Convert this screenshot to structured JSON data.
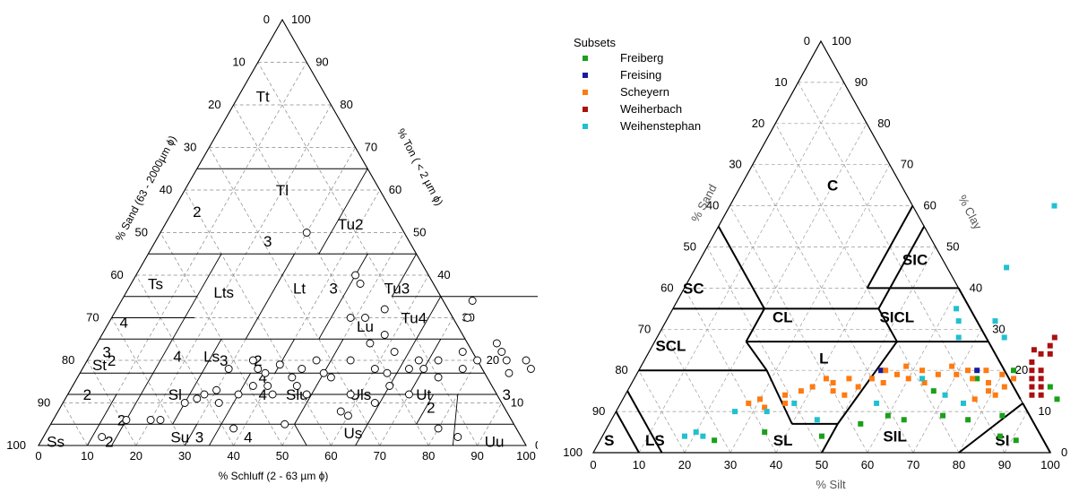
{
  "chart_data": [
    {
      "type": "scatter",
      "subtype": "ternary",
      "title": "",
      "axes": {
        "bottom": {
          "label": "% Schluff (2 - 63 µm ϕ)",
          "ticks": [
            "0",
            "10",
            "20",
            "30",
            "40",
            "50",
            "60",
            "70",
            "80",
            "90",
            "100"
          ]
        },
        "left": {
          "label": "% Sand (63 - 2000µm ϕ)",
          "ticks": [
            "0",
            "10",
            "20",
            "30",
            "40",
            "50",
            "60",
            "70",
            "80",
            "90",
            "100"
          ]
        },
        "right": {
          "label": "% Ton ( < 2 µm ϕ)",
          "ticks": [
            "0",
            "10",
            "20",
            "30",
            "40",
            "50",
            "60",
            "70",
            "80",
            "90",
            "100"
          ]
        }
      },
      "grid": true,
      "classes": [
        "Tt",
        "Tl",
        "Tu2",
        "2",
        "3",
        "Ts",
        "Lts",
        "Lt",
        "3",
        "Tu3",
        "4",
        "2",
        "Lu",
        "Tu4",
        "3",
        "4",
        "Ls",
        "3",
        "2",
        "4",
        "St",
        "2",
        "Sl",
        "4",
        "Slu",
        "Uls",
        "Ut",
        "2",
        "3",
        "2",
        "Su",
        "3",
        "4",
        "Us",
        "Ss",
        "2",
        "Uu"
      ],
      "marker": "open-circle",
      "points": [
        [
          15,
          6
        ],
        [
          12,
          2
        ],
        [
          20,
          6
        ],
        [
          22,
          6
        ],
        [
          25,
          10
        ],
        [
          27,
          11
        ],
        [
          28,
          12
        ],
        [
          30,
          13
        ],
        [
          32,
          10
        ],
        [
          35,
          12
        ],
        [
          37,
          14
        ],
        [
          38,
          17
        ],
        [
          40,
          19
        ],
        [
          42,
          12
        ],
        [
          44,
          16
        ],
        [
          45,
          18
        ],
        [
          47,
          20
        ],
        [
          49,
          12
        ],
        [
          50,
          17
        ],
        [
          52,
          16
        ],
        [
          54,
          20
        ],
        [
          56,
          24
        ],
        [
          58,
          26
        ],
        [
          52,
          30
        ],
        [
          55,
          32
        ],
        [
          60,
          18
        ],
        [
          62,
          22
        ],
        [
          63,
          17
        ],
        [
          65,
          14
        ],
        [
          67,
          18
        ],
        [
          68,
          20
        ],
        [
          70,
          18
        ],
        [
          72,
          20
        ],
        [
          74,
          16
        ],
        [
          76,
          22
        ],
        [
          78,
          18
        ],
        [
          80,
          20
        ],
        [
          82,
          24
        ],
        [
          84,
          22
        ],
        [
          86,
          20
        ],
        [
          88,
          17
        ],
        [
          90,
          20
        ],
        [
          92,
          18
        ],
        [
          94,
          24
        ],
        [
          45,
          40
        ],
        [
          47,
          38
        ],
        [
          30,
          50
        ],
        [
          49,
          30
        ],
        [
          60,
          7
        ],
        [
          38,
          4
        ],
        [
          48,
          5
        ],
        [
          58,
          8
        ],
        [
          72,
          34
        ],
        [
          73,
          30
        ],
        [
          80,
          4
        ],
        [
          85,
          2
        ],
        [
          30,
          18
        ],
        [
          34,
          20
        ],
        [
          36,
          18
        ],
        [
          40,
          14
        ],
        [
          46,
          14
        ],
        [
          58,
          12
        ],
        [
          64,
          10
        ],
        [
          70,
          12
        ]
      ]
    },
    {
      "type": "scatter",
      "subtype": "ternary",
      "title": "",
      "axes": {
        "bottom": {
          "label": "% Silt",
          "ticks": [
            "0",
            "10",
            "20",
            "30",
            "40",
            "50",
            "60",
            "70",
            "80",
            "90",
            "100"
          ]
        },
        "left": {
          "label": "% Sand",
          "ticks": [
            "0",
            "10",
            "20",
            "30",
            "40",
            "50",
            "60",
            "70",
            "80",
            "90",
            "100"
          ]
        },
        "right": {
          "label": "% Clay",
          "ticks": [
            "0",
            "10",
            "20",
            "30",
            "40",
            "50",
            "60",
            "70",
            "80",
            "90",
            "100"
          ]
        }
      },
      "grid": true,
      "legend": {
        "title": "Subsets",
        "placement": "top-left"
      },
      "classes": [
        "C",
        "SIC",
        "SC",
        "CL",
        "SICL",
        "SCL",
        "L",
        "S",
        "LS",
        "SL",
        "SIL",
        "SI"
      ],
      "series": [
        {
          "name": "Freiberg",
          "color": "#1aa01a",
          "points": [
            [
              25,
              3
            ],
            [
              35,
              5
            ],
            [
              48,
              4
            ],
            [
              55,
              7
            ],
            [
              60,
              9
            ],
            [
              64,
              8
            ],
            [
              72,
              9
            ],
            [
              78,
              8
            ],
            [
              85,
              9
            ],
            [
              87,
              4
            ],
            [
              91,
              3
            ],
            [
              92,
              16
            ],
            [
              95,
              13
            ],
            [
              67,
              15
            ],
            [
              75,
              18
            ],
            [
              82,
              20
            ]
          ]
        },
        {
          "name": "Freising",
          "color": "#1a1aa0",
          "points": [
            [
              53,
              20
            ],
            [
              74,
              20
            ]
          ]
        },
        {
          "name": "Scheyern",
          "color": "#ff7a10",
          "points": [
            [
              28,
              12
            ],
            [
              30,
              13
            ],
            [
              32,
              11
            ],
            [
              35,
              14
            ],
            [
              36,
              12
            ],
            [
              38,
              15
            ],
            [
              40,
              16
            ],
            [
              42,
              18
            ],
            [
              44,
              17
            ],
            [
              45,
              15
            ],
            [
              47,
              18
            ],
            [
              48,
              14
            ],
            [
              50,
              16
            ],
            [
              52,
              18
            ],
            [
              54,
              20
            ],
            [
              55,
              17
            ],
            [
              57,
              19
            ],
            [
              58,
              21
            ],
            [
              60,
              18
            ],
            [
              62,
              20
            ],
            [
              64,
              17
            ],
            [
              66,
              19
            ],
            [
              68,
              21
            ],
            [
              70,
              19
            ],
            [
              72,
              20
            ],
            [
              74,
              18
            ],
            [
              76,
              20
            ],
            [
              78,
              17
            ],
            [
              80,
              19
            ],
            [
              82,
              16
            ],
            [
              81,
              14
            ],
            [
              79,
              15
            ],
            [
              77,
              13
            ],
            [
              83,
              18
            ]
          ]
        },
        {
          "name": "Weiherbach",
          "color": "#aa1010",
          "points": [
            [
              84,
              25
            ],
            [
              85,
              22
            ],
            [
              86,
              20
            ],
            [
              87,
              18
            ],
            [
              88,
              16
            ],
            [
              89,
              14
            ],
            [
              86,
              24
            ],
            [
              87,
              26
            ],
            [
              88,
              20
            ],
            [
              89,
              18
            ],
            [
              90,
              16
            ],
            [
              91,
              14
            ],
            [
              87,
              28
            ],
            [
              88,
              24
            ]
          ]
        },
        {
          "name": "Weihenstephan",
          "color": "#20c0d0",
          "points": [
            [
              18,
              4
            ],
            [
              20,
              5
            ],
            [
              22,
              4
            ],
            [
              26,
              10
            ],
            [
              33,
              10
            ],
            [
              38,
              12
            ],
            [
              45,
              8
            ],
            [
              56,
              12
            ],
            [
              62,
              35
            ],
            [
              64,
              32
            ],
            [
              66,
              28
            ],
            [
              71,
              60
            ],
            [
              68,
              45
            ],
            [
              72,
              32
            ],
            [
              76,
              28
            ],
            [
              63,
              18
            ],
            [
              70,
              14
            ],
            [
              75,
              12
            ]
          ]
        }
      ]
    }
  ],
  "legend_items": [
    "Freiberg",
    "Freising",
    "Scheyern",
    "Weiherbach",
    "Weihenstephan"
  ],
  "legend_title": "Subsets"
}
